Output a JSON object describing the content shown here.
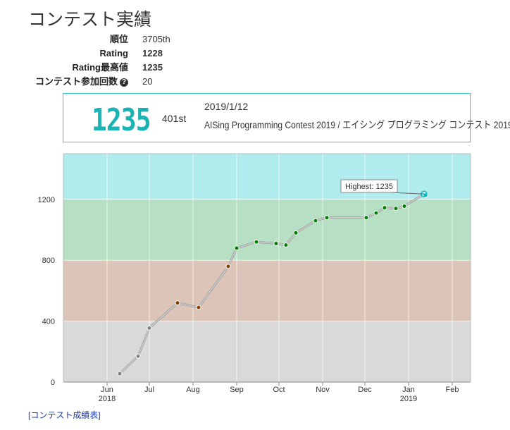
{
  "title": "コンテスト実績",
  "stats": [
    {
      "label": "順位",
      "value": "3705th"
    },
    {
      "label": "Rating",
      "value": "1228"
    },
    {
      "label": "Rating最高値",
      "value": "1235"
    },
    {
      "label": "コンテスト参加回数",
      "value": "20"
    }
  ],
  "help_icon": "question-circle-icon",
  "card": {
    "rating": "1235",
    "rank": "401st",
    "date": "2019/1/12",
    "contest": "AISing Programming Contest 2019 / エイシング プログラミング コンテスト 2019"
  },
  "colors": {
    "teal": "#1ab2b2",
    "band_cyan": "#b0ebee",
    "band_green": "#b6dfc3",
    "band_brown": "#dcc5b8",
    "band_gray": "#d9d9d9",
    "dot_gray": "#808080",
    "dot_brown": "#804000",
    "dot_green": "#008000",
    "dot_cyan": "#00c0c0"
  },
  "chart_data": {
    "type": "line",
    "title": "",
    "xlabel": "",
    "ylabel": "",
    "ylim": [
      0,
      1500
    ],
    "yticks": [
      0,
      400,
      800,
      1200
    ],
    "xticks": [
      {
        "date": "2018-06-01",
        "label": "Jun",
        "sub": "2018"
      },
      {
        "date": "2018-07-01",
        "label": "Jul",
        "sub": ""
      },
      {
        "date": "2018-08-01",
        "label": "Aug",
        "sub": ""
      },
      {
        "date": "2018-09-01",
        "label": "Sep",
        "sub": ""
      },
      {
        "date": "2018-10-01",
        "label": "Oct",
        "sub": ""
      },
      {
        "date": "2018-11-01",
        "label": "Nov",
        "sub": ""
      },
      {
        "date": "2018-12-01",
        "label": "Dec",
        "sub": ""
      },
      {
        "date": "2019-01-01",
        "label": "Jan",
        "sub": "2019"
      },
      {
        "date": "2019-02-01",
        "label": "Feb",
        "sub": ""
      }
    ],
    "xlim": [
      "2018-05-01",
      "2019-02-14"
    ],
    "bands": [
      {
        "from": 0,
        "to": 400,
        "color": "#d9d9d9"
      },
      {
        "from": 400,
        "to": 800,
        "color": "#dcc5b8"
      },
      {
        "from": 800,
        "to": 1200,
        "color": "#b6dfc3"
      },
      {
        "from": 1200,
        "to": 1500,
        "color": "#b0ebee"
      }
    ],
    "series": [
      {
        "name": "Rating",
        "points": [
          {
            "date": "2018-06-10",
            "value": 55
          },
          {
            "date": "2018-06-23",
            "value": 170
          },
          {
            "date": "2018-07-01",
            "value": 355
          },
          {
            "date": "2018-07-21",
            "value": 520
          },
          {
            "date": "2018-08-05",
            "value": 490
          },
          {
            "date": "2018-08-26",
            "value": 760
          },
          {
            "date": "2018-09-01",
            "value": 880
          },
          {
            "date": "2018-09-15",
            "value": 920
          },
          {
            "date": "2018-09-29",
            "value": 910
          },
          {
            "date": "2018-10-06",
            "value": 900
          },
          {
            "date": "2018-10-13",
            "value": 980
          },
          {
            "date": "2018-10-27",
            "value": 1060
          },
          {
            "date": "2018-11-04",
            "value": 1080
          },
          {
            "date": "2018-12-02",
            "value": 1080
          },
          {
            "date": "2018-12-09",
            "value": 1110
          },
          {
            "date": "2018-12-15",
            "value": 1145
          },
          {
            "date": "2018-12-23",
            "value": 1140
          },
          {
            "date": "2018-12-29",
            "value": 1155
          },
          {
            "date": "2019-01-12",
            "value": 1235
          },
          {
            "date": "2019-01-13",
            "value": 1228
          }
        ]
      }
    ],
    "annotation": {
      "label": "Highest: 1235",
      "value": 1235,
      "date": "2019-01-12"
    }
  },
  "footer_link": "[コンテスト成績表]"
}
